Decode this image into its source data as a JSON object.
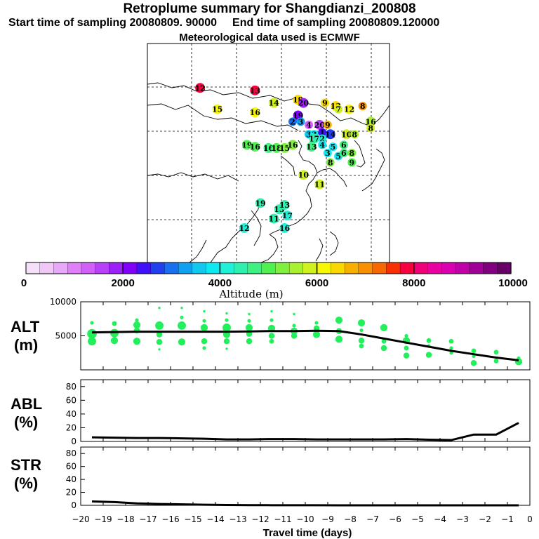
{
  "header": {
    "title": "Retroplume summary for Shangdianzi_200808",
    "start": "Start time of sampling 20080809. 90000",
    "end": "End time of sampling 20080809.120000",
    "met": "Meteorological data used is ECMWF"
  },
  "colorbar": {
    "label": "Altitude (m)",
    "ticks": [
      "0",
      "2000",
      "4000",
      "6000",
      "8000",
      "10000"
    ],
    "colors": [
      "#f4e0f8",
      "#f0c8f8",
      "#e8a8f8",
      "#e080f8",
      "#d060f8",
      "#b840f8",
      "#9c20f8",
      "#8000f8",
      "#4010f8",
      "#2040f0",
      "#1870f0",
      "#10a0f0",
      "#10c8f0",
      "#10e8f0",
      "#20f0d8",
      "#30f0b0",
      "#40f080",
      "#50f050",
      "#80f040",
      "#a8f030",
      "#d0f020",
      "#f8f800",
      "#f8d800",
      "#f8b000",
      "#f89000",
      "#f86800",
      "#f83000",
      "#f80040",
      "#f00078",
      "#e800a0",
      "#d800b0",
      "#c000a8",
      "#a00098",
      "#800080",
      "#680068"
    ]
  },
  "map": {
    "labels": [
      {
        "t": "12",
        "lon": 104.8,
        "lat": 47.9,
        "c": "#f80040"
      },
      {
        "t": "13",
        "lon": 115.0,
        "lat": 47.5,
        "c": "#f80040"
      },
      {
        "t": "14",
        "lon": 118.5,
        "lat": 45.5,
        "c": "#d0f020"
      },
      {
        "t": "15",
        "lon": 108.0,
        "lat": 44.5,
        "c": "#f8f800"
      },
      {
        "t": "16",
        "lon": 115.0,
        "lat": 44.0,
        "c": "#f8f800"
      },
      {
        "t": "19",
        "lon": 123.0,
        "lat": 46.0,
        "c": "#f8d800"
      },
      {
        "t": "20",
        "lon": 124.0,
        "lat": 45.5,
        "c": "#9c20f8"
      },
      {
        "t": "9",
        "lon": 128.0,
        "lat": 45.5,
        "c": "#f8d800"
      },
      {
        "t": "13",
        "lon": 130.0,
        "lat": 45.0,
        "c": "#f8d800"
      },
      {
        "t": "7",
        "lon": 130.5,
        "lat": 44.5,
        "c": "#d0f020"
      },
      {
        "t": "12",
        "lon": 132.5,
        "lat": 44.5,
        "c": "#f8f800"
      },
      {
        "t": "8",
        "lon": 135.0,
        "lat": 45.0,
        "c": "#f89000"
      },
      {
        "t": "16",
        "lon": 136.5,
        "lat": 42.5,
        "c": "#a8f030"
      },
      {
        "t": "8",
        "lon": 136.5,
        "lat": 41.5,
        "c": "#d0f020"
      },
      {
        "t": "19",
        "lon": 123.0,
        "lat": 43.5,
        "c": "#8000f8"
      },
      {
        "t": "2",
        "lon": 122.0,
        "lat": 42.5,
        "c": "#1870f0"
      },
      {
        "t": "3",
        "lon": 123.5,
        "lat": 42.5,
        "c": "#10a0f0"
      },
      {
        "t": "4",
        "lon": 125.0,
        "lat": 42.0,
        "c": "#d060f8"
      },
      {
        "t": "20",
        "lon": 127.0,
        "lat": 42.0,
        "c": "#b840f8"
      },
      {
        "t": "9",
        "lon": 128.5,
        "lat": 42.0,
        "c": "#f8b000"
      },
      {
        "t": "3",
        "lon": 125.0,
        "lat": 40.5,
        "c": "#10c8f0"
      },
      {
        "t": "3",
        "lon": 126.0,
        "lat": 40.5,
        "c": "#10e8f0"
      },
      {
        "t": "1",
        "lon": 127.5,
        "lat": 40.8,
        "c": "#4010f8"
      },
      {
        "t": "14",
        "lon": 129.0,
        "lat": 40.5,
        "c": "#2040f0"
      },
      {
        "t": "10",
        "lon": 132.0,
        "lat": 40.5,
        "c": "#d0f020"
      },
      {
        "t": "8",
        "lon": 133.5,
        "lat": 40.5,
        "c": "#a8f030"
      },
      {
        "t": "17",
        "lon": 126.0,
        "lat": 39.8,
        "c": "#30f0b0"
      },
      {
        "t": "2",
        "lon": 127.5,
        "lat": 39.8,
        "c": "#20f0d8"
      },
      {
        "t": "19",
        "lon": 113.5,
        "lat": 38.8,
        "c": "#50f050"
      },
      {
        "t": "16",
        "lon": 115.0,
        "lat": 38.5,
        "c": "#50f050"
      },
      {
        "t": "16",
        "lon": 117.5,
        "lat": 38.3,
        "c": "#40f080"
      },
      {
        "t": "18",
        "lon": 119.0,
        "lat": 38.3,
        "c": "#50f050"
      },
      {
        "t": "15",
        "lon": 120.5,
        "lat": 38.3,
        "c": "#80f040"
      },
      {
        "t": "16",
        "lon": 122.0,
        "lat": 38.8,
        "c": "#80f040"
      },
      {
        "t": "13",
        "lon": 125.5,
        "lat": 38.5,
        "c": "#40f080"
      },
      {
        "t": "4",
        "lon": 127.5,
        "lat": 38.8,
        "c": "#10e8f0"
      },
      {
        "t": "5",
        "lon": 129.5,
        "lat": 38.5,
        "c": "#10e8f0"
      },
      {
        "t": "6",
        "lon": 131.5,
        "lat": 38.8,
        "c": "#40f080"
      },
      {
        "t": "3",
        "lon": 128.5,
        "lat": 37.5,
        "c": "#10e8f0"
      },
      {
        "t": "5",
        "lon": 130.5,
        "lat": 37.0,
        "c": "#10e8f0"
      },
      {
        "t": "6",
        "lon": 131.5,
        "lat": 37.5,
        "c": "#40f080"
      },
      {
        "t": "8",
        "lon": 133.0,
        "lat": 37.5,
        "c": "#80f040"
      },
      {
        "t": "8",
        "lon": 129.0,
        "lat": 36.0,
        "c": "#80f040"
      },
      {
        "t": "9",
        "lon": 133.0,
        "lat": 36.0,
        "c": "#50f050"
      },
      {
        "t": "10",
        "lon": 124.0,
        "lat": 34.0,
        "c": "#d0f020"
      },
      {
        "t": "11",
        "lon": 127.0,
        "lat": 32.5,
        "c": "#d0f020"
      },
      {
        "t": "19",
        "lon": 116.0,
        "lat": 29.5,
        "c": "#30f0b0"
      },
      {
        "t": "13",
        "lon": 119.5,
        "lat": 28.5,
        "c": "#30f0b0"
      },
      {
        "t": "13",
        "lon": 120.5,
        "lat": 29.2,
        "c": "#30f0b0"
      },
      {
        "t": "11",
        "lon": 118.5,
        "lat": 27.0,
        "c": "#30f0b0"
      },
      {
        "t": "17",
        "lon": 121.0,
        "lat": 27.5,
        "c": "#20f0d8"
      },
      {
        "t": "12",
        "lon": 113.0,
        "lat": 25.5,
        "c": "#20f0d8"
      },
      {
        "t": "16",
        "lon": 120.5,
        "lat": 25.5,
        "c": "#20f0d8"
      }
    ]
  },
  "panels": {
    "alt": {
      "label1": "ALT",
      "label2": "(m)"
    },
    "abl": {
      "label1": "ABL",
      "label2": "(%)"
    },
    "str": {
      "label1": "STR",
      "label2": "(%)"
    }
  },
  "xaxis": {
    "label": "Travel time (days)"
  },
  "chart_data": [
    {
      "type": "scatter",
      "title": "ALT",
      "xlabel": "Travel time (days)",
      "ylabel": "(m)",
      "xlim": [
        -20,
        0
      ],
      "ylim": [
        0,
        10000
      ],
      "yticks": [
        5000,
        10000
      ],
      "line": {
        "name": "mean altitude",
        "x": [
          -19.5,
          -18.5,
          -17.5,
          -16.5,
          -15.5,
          -14.5,
          -13.5,
          -12.5,
          -11.5,
          -10.5,
          -9.5,
          -8.5,
          -7.5,
          -6.5,
          -5.5,
          -4.5,
          -3.5,
          -2.5,
          -1.5,
          -0.5
        ],
        "y": [
          5500,
          5550,
          5600,
          5600,
          5600,
          5600,
          5600,
          5650,
          5700,
          5700,
          5750,
          5700,
          5200,
          4600,
          4000,
          3400,
          2800,
          2300,
          1800,
          1400
        ]
      },
      "points": [
        {
          "x": -19.5,
          "y": 5300,
          "s": 8
        },
        {
          "x": -19.5,
          "y": 4200,
          "s": 7
        },
        {
          "x": -19.5,
          "y": 6900,
          "s": 3
        },
        {
          "x": -18.5,
          "y": 5400,
          "s": 7
        },
        {
          "x": -18.5,
          "y": 4300,
          "s": 6
        },
        {
          "x": -18.5,
          "y": 6800,
          "s": 4
        },
        {
          "x": -17.5,
          "y": 6600,
          "s": 6
        },
        {
          "x": -17.5,
          "y": 5800,
          "s": 5
        },
        {
          "x": -17.5,
          "y": 4200,
          "s": 6
        },
        {
          "x": -17.5,
          "y": 7300,
          "s": 3
        },
        {
          "x": -16.5,
          "y": 6500,
          "s": 7
        },
        {
          "x": -16.5,
          "y": 5200,
          "s": 5
        },
        {
          "x": -16.5,
          "y": 4100,
          "s": 5
        },
        {
          "x": -16.5,
          "y": 3000,
          "s": 2
        },
        {
          "x": -16.5,
          "y": 9100,
          "s": 2
        },
        {
          "x": -15.5,
          "y": 6500,
          "s": 7
        },
        {
          "x": -15.5,
          "y": 4100,
          "s": 6
        },
        {
          "x": -15.5,
          "y": 7700,
          "s": 3
        },
        {
          "x": -15.5,
          "y": 9100,
          "s": 2
        },
        {
          "x": -14.5,
          "y": 6200,
          "s": 6
        },
        {
          "x": -14.5,
          "y": 4200,
          "s": 5
        },
        {
          "x": -14.5,
          "y": 3200,
          "s": 3
        },
        {
          "x": -14.5,
          "y": 7200,
          "s": 3
        },
        {
          "x": -14.5,
          "y": 8600,
          "s": 2
        },
        {
          "x": -13.5,
          "y": 6200,
          "s": 7
        },
        {
          "x": -13.5,
          "y": 5200,
          "s": 6
        },
        {
          "x": -13.5,
          "y": 4200,
          "s": 5
        },
        {
          "x": -13.5,
          "y": 7300,
          "s": 3
        },
        {
          "x": -13.5,
          "y": 8300,
          "s": 2
        },
        {
          "x": -13.5,
          "y": 3100,
          "s": 2
        },
        {
          "x": -12.5,
          "y": 6200,
          "s": 6
        },
        {
          "x": -12.5,
          "y": 5300,
          "s": 5
        },
        {
          "x": -12.5,
          "y": 4200,
          "s": 5
        },
        {
          "x": -12.5,
          "y": 7200,
          "s": 3
        },
        {
          "x": -12.5,
          "y": 8200,
          "s": 2
        },
        {
          "x": -11.5,
          "y": 6100,
          "s": 6
        },
        {
          "x": -11.5,
          "y": 5000,
          "s": 5
        },
        {
          "x": -11.5,
          "y": 4200,
          "s": 4
        },
        {
          "x": -11.5,
          "y": 7300,
          "s": 3
        },
        {
          "x": -11.5,
          "y": 8600,
          "s": 2
        },
        {
          "x": -10.5,
          "y": 5700,
          "s": 6
        },
        {
          "x": -10.5,
          "y": 5000,
          "s": 5
        },
        {
          "x": -10.5,
          "y": 6500,
          "s": 3
        },
        {
          "x": -10.5,
          "y": 8200,
          "s": 2
        },
        {
          "x": -9.5,
          "y": 6100,
          "s": 5
        },
        {
          "x": -9.5,
          "y": 5200,
          "s": 6
        },
        {
          "x": -9.5,
          "y": 6900,
          "s": 3
        },
        {
          "x": -8.5,
          "y": 7300,
          "s": 6
        },
        {
          "x": -8.5,
          "y": 5700,
          "s": 5
        },
        {
          "x": -8.5,
          "y": 4500,
          "s": 6
        },
        {
          "x": -7.5,
          "y": 6900,
          "s": 6
        },
        {
          "x": -7.5,
          "y": 4300,
          "s": 5
        },
        {
          "x": -7.5,
          "y": 3500,
          "s": 4
        },
        {
          "x": -7.5,
          "y": 5800,
          "s": 3
        },
        {
          "x": -6.5,
          "y": 6200,
          "s": 6
        },
        {
          "x": -6.5,
          "y": 3200,
          "s": 5
        },
        {
          "x": -6.5,
          "y": 4200,
          "s": 4
        },
        {
          "x": -5.5,
          "y": 4300,
          "s": 6
        },
        {
          "x": -5.5,
          "y": 2100,
          "s": 5
        },
        {
          "x": -5.5,
          "y": 3200,
          "s": 4
        },
        {
          "x": -5.5,
          "y": 5000,
          "s": 3
        },
        {
          "x": -4.5,
          "y": 4300,
          "s": 4
        },
        {
          "x": -4.5,
          "y": 2200,
          "s": 5
        },
        {
          "x": -4.5,
          "y": 3500,
          "s": 3
        },
        {
          "x": -3.5,
          "y": 4200,
          "s": 4
        },
        {
          "x": -3.5,
          "y": 3200,
          "s": 3
        },
        {
          "x": -3.5,
          "y": 2500,
          "s": 3
        },
        {
          "x": -2.5,
          "y": 2800,
          "s": 4
        },
        {
          "x": -2.5,
          "y": 1000,
          "s": 5
        },
        {
          "x": -2.5,
          "y": 2000,
          "s": 3
        },
        {
          "x": -1.5,
          "y": 2600,
          "s": 4
        },
        {
          "x": -1.5,
          "y": 1300,
          "s": 4
        },
        {
          "x": -0.5,
          "y": 1200,
          "s": 6
        },
        {
          "x": -0.5,
          "y": 1700,
          "s": 3
        }
      ]
    },
    {
      "type": "line",
      "title": "ABL",
      "xlabel": "Travel time (days)",
      "ylabel": "(%)",
      "xlim": [
        -20,
        0
      ],
      "ylim": [
        0,
        90
      ],
      "yticks": [
        0,
        20,
        40,
        60,
        80
      ],
      "x": [
        -19.5,
        -18.5,
        -17.5,
        -16.5,
        -15.5,
        -14.5,
        -13.5,
        -12.5,
        -11.5,
        -10.5,
        -9.5,
        -8.5,
        -7.5,
        -6.5,
        -5.5,
        -4.5,
        -3.5,
        -2.5,
        -1.5,
        -0.5
      ],
      "y": [
        6,
        5.5,
        5,
        5,
        4.5,
        4,
        3,
        3,
        3.5,
        3.5,
        3,
        3,
        3,
        3,
        3.5,
        2.5,
        2,
        10,
        10,
        27
      ]
    },
    {
      "type": "line",
      "title": "STR",
      "xlabel": "Travel time (days)",
      "ylabel": "(%)",
      "xlim": [
        -20,
        0
      ],
      "ylim": [
        0,
        90
      ],
      "yticks": [
        0,
        20,
        40,
        60,
        80
      ],
      "x": [
        -19.5,
        -18.5,
        -17.5,
        -16.5,
        -15.5,
        -14.5,
        -13.5,
        -12.5,
        -11.5,
        -10.5,
        -9.5,
        -8.5,
        -7.5,
        -6.5,
        -5.5,
        -4.5,
        -3.5,
        -2.5,
        -1.5,
        -0.5
      ],
      "y": [
        6,
        5,
        3,
        2,
        1.5,
        1,
        0.5,
        0.3,
        0.2,
        0.1,
        0.1,
        0,
        0,
        0,
        0,
        0,
        0,
        0,
        0,
        0
      ]
    }
  ],
  "xticks": [
    -20,
    -19,
    -18,
    -17,
    -16,
    -15,
    -14,
    -13,
    -12,
    -11,
    -10,
    -9,
    -8,
    -7,
    -6,
    -5,
    -4,
    -3,
    -2,
    -1,
    0
  ]
}
